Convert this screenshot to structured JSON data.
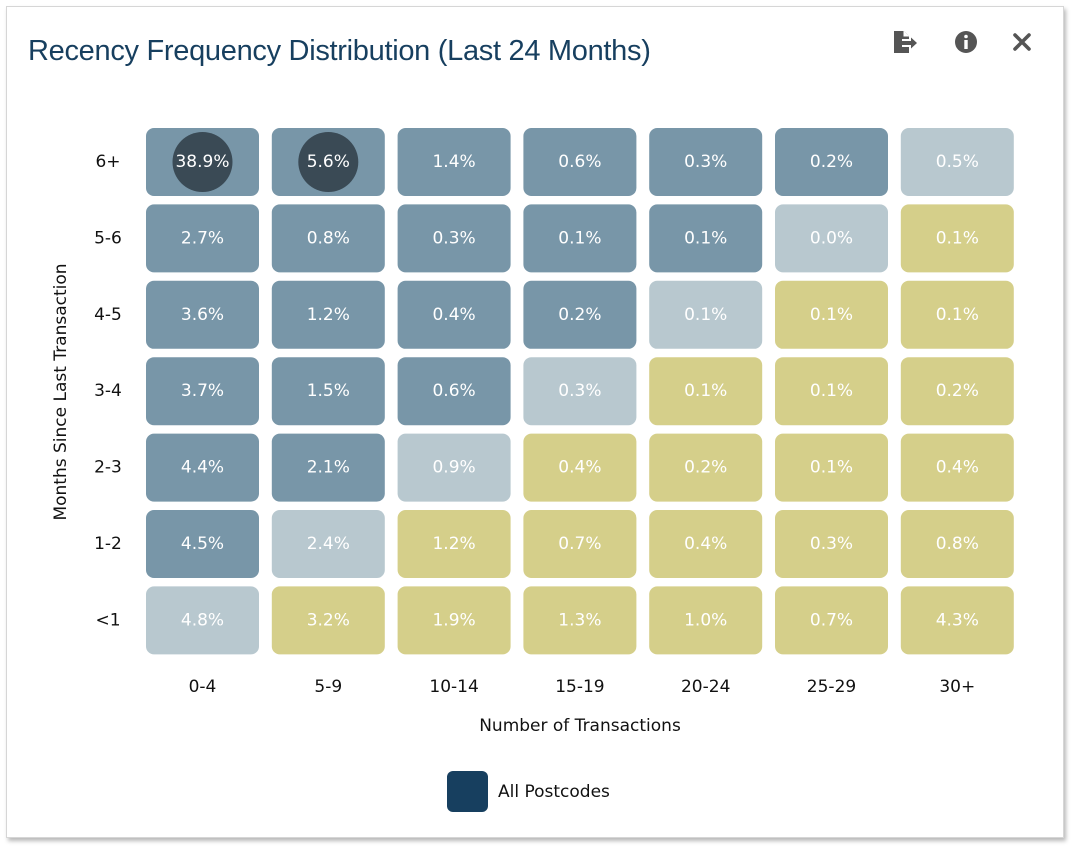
{
  "colors": {
    "title": "#173f5f",
    "blue": "#7896a8",
    "light": "#b8c8cf",
    "khaki": "#d5cf8a",
    "bubble": "#3a4a55",
    "legend": "#173f5f",
    "icon": "#555555"
  },
  "toolbar": {
    "export_icon": "export-icon",
    "info_icon": "info-icon",
    "close_icon": "close-icon"
  },
  "chart_data": {
    "type": "heatmap",
    "title": "Recency Frequency Distribution (Last 24 Months)",
    "xlabel": "Number of Transactions",
    "ylabel": "Months Since Last Transaction",
    "x_categories": [
      "0-4",
      "5-9",
      "10-14",
      "15-19",
      "20-24",
      "25-29",
      "30+"
    ],
    "y_categories": [
      "6+",
      "5-6",
      "4-5",
      "3-4",
      "2-3",
      "1-2",
      "<1"
    ],
    "values": [
      [
        "38.9%",
        "5.6%",
        "1.4%",
        "0.6%",
        "0.3%",
        "0.2%",
        "0.5%"
      ],
      [
        "2.7%",
        "0.8%",
        "0.3%",
        "0.1%",
        "0.1%",
        "0.0%",
        "0.1%"
      ],
      [
        "3.6%",
        "1.2%",
        "0.4%",
        "0.2%",
        "0.1%",
        "0.1%",
        "0.1%"
      ],
      [
        "3.7%",
        "1.5%",
        "0.6%",
        "0.3%",
        "0.1%",
        "0.1%",
        "0.2%"
      ],
      [
        "4.4%",
        "2.1%",
        "0.9%",
        "0.4%",
        "0.2%",
        "0.1%",
        "0.4%"
      ],
      [
        "4.5%",
        "2.4%",
        "1.2%",
        "0.7%",
        "0.4%",
        "0.3%",
        "0.8%"
      ],
      [
        "4.8%",
        "3.2%",
        "1.9%",
        "1.3%",
        "1.0%",
        "0.7%",
        "4.3%"
      ]
    ],
    "color_class": [
      [
        "blue",
        "blue",
        "blue",
        "blue",
        "blue",
        "blue",
        "light"
      ],
      [
        "blue",
        "blue",
        "blue",
        "blue",
        "blue",
        "light",
        "khaki"
      ],
      [
        "blue",
        "blue",
        "blue",
        "blue",
        "light",
        "khaki",
        "khaki"
      ],
      [
        "blue",
        "blue",
        "blue",
        "light",
        "khaki",
        "khaki",
        "khaki"
      ],
      [
        "blue",
        "blue",
        "light",
        "khaki",
        "khaki",
        "khaki",
        "khaki"
      ],
      [
        "blue",
        "light",
        "khaki",
        "khaki",
        "khaki",
        "khaki",
        "khaki"
      ],
      [
        "light",
        "khaki",
        "khaki",
        "khaki",
        "khaki",
        "khaki",
        "khaki"
      ]
    ],
    "bubbles": [
      {
        "row": 0,
        "col": 0
      },
      {
        "row": 0,
        "col": 1
      }
    ],
    "legend": [
      {
        "label": "All Postcodes"
      }
    ]
  }
}
